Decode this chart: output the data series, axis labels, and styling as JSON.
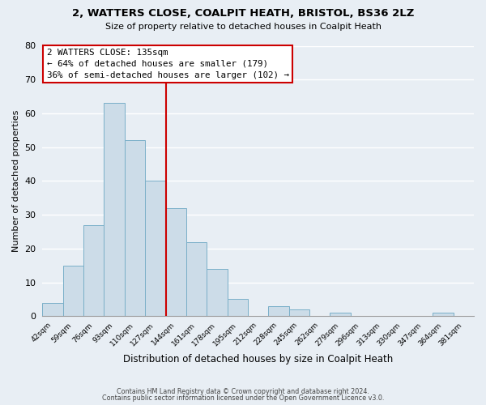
{
  "title": "2, WATTERS CLOSE, COALPIT HEATH, BRISTOL, BS36 2LZ",
  "subtitle": "Size of property relative to detached houses in Coalpit Heath",
  "xlabel": "Distribution of detached houses by size in Coalpit Heath",
  "ylabel": "Number of detached properties",
  "bin_labels": [
    "42sqm",
    "59sqm",
    "76sqm",
    "93sqm",
    "110sqm",
    "127sqm",
    "144sqm",
    "161sqm",
    "178sqm",
    "195sqm",
    "212sqm",
    "228sqm",
    "245sqm",
    "262sqm",
    "279sqm",
    "296sqm",
    "313sqm",
    "330sqm",
    "347sqm",
    "364sqm",
    "381sqm"
  ],
  "bar_values": [
    4,
    15,
    27,
    63,
    52,
    40,
    32,
    22,
    14,
    5,
    0,
    3,
    2,
    0,
    1,
    0,
    0,
    0,
    0,
    1,
    0
  ],
  "bar_color": "#ccdce8",
  "bar_edge_color": "#7aafc8",
  "vline_color": "#cc0000",
  "ylim": [
    0,
    80
  ],
  "yticks": [
    0,
    10,
    20,
    30,
    40,
    50,
    60,
    70,
    80
  ],
  "annotation_title": "2 WATTERS CLOSE: 135sqm",
  "annotation_line1": "← 64% of detached houses are smaller (179)",
  "annotation_line2": "36% of semi-detached houses are larger (102) →",
  "annotation_box_color": "#ffffff",
  "annotation_box_edge": "#cc0000",
  "footer_line1": "Contains HM Land Registry data © Crown copyright and database right 2024.",
  "footer_line2": "Contains public sector information licensed under the Open Government Licence v3.0.",
  "background_color": "#e8eef4",
  "grid_color": "#ffffff"
}
